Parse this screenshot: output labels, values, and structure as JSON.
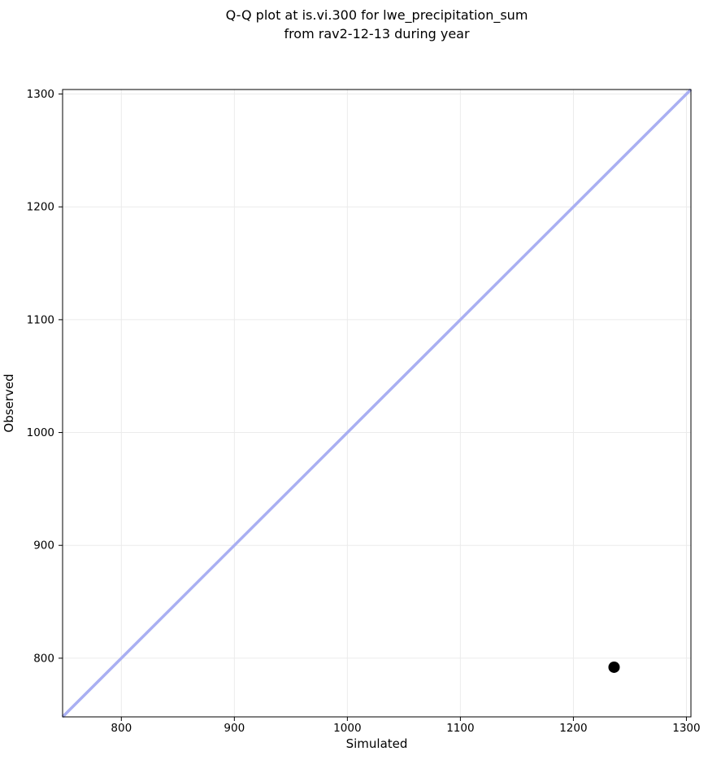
{
  "chart_data": {
    "type": "scatter",
    "title": "Q-Q plot at is.vi.300 for lwe_precipitation_sum\nfrom rav2-12-13 during year",
    "title_lines": [
      "Q-Q plot at is.vi.300 for lwe_precipitation_sum",
      "from rav2-12-13 during year"
    ],
    "xlabel": "Simulated",
    "ylabel": "Observed",
    "xlim": [
      748,
      1304
    ],
    "ylim": [
      748,
      1304
    ],
    "xticks": [
      800,
      900,
      1000,
      1100,
      1200,
      1300
    ],
    "yticks": [
      800,
      900,
      1000,
      1100,
      1200,
      1300
    ],
    "grid": true,
    "series": [
      {
        "name": "identity-reference-line",
        "kind": "line",
        "color": "#a9aff2",
        "width": 3.5,
        "points": [
          {
            "x": 748,
            "y": 748
          },
          {
            "x": 1304,
            "y": 1304
          }
        ]
      },
      {
        "name": "quantile-points",
        "kind": "scatter",
        "marker": "circle",
        "color": "#000000",
        "radius": 7,
        "points": [
          {
            "x": 1236,
            "y": 792
          }
        ]
      }
    ],
    "colors": {
      "background": "#ffffff",
      "grid": "#ebebeb",
      "axis": "#000000",
      "text": "#000000"
    }
  }
}
